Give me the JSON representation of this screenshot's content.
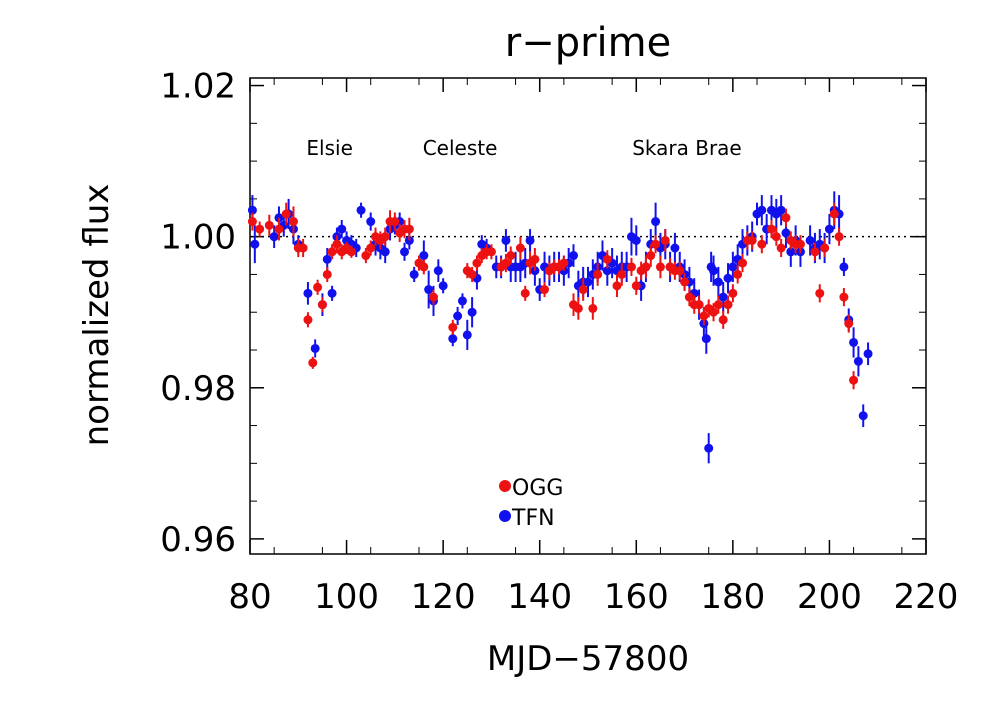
{
  "chart_data": {
    "type": "scatter",
    "title": "r−prime",
    "xlabel": "MJD−57800",
    "ylabel": "normalized flux",
    "xlim": [
      80,
      220
    ],
    "ylim": [
      0.958,
      1.021
    ],
    "xticks": [
      80,
      100,
      120,
      140,
      160,
      180,
      200,
      220
    ],
    "xtick_labels": [
      "80",
      "100",
      "120",
      "140",
      "160",
      "180",
      "200",
      "220"
    ],
    "yticks": [
      0.96,
      0.98,
      1.0,
      1.02
    ],
    "ytick_labels": [
      "0.96",
      "0.98",
      "1.00",
      "1.02"
    ],
    "reference_line": 1.0,
    "grid": false,
    "legend_position": "bottom-center",
    "annotations": [
      {
        "text": "Elsie",
        "x": 96.5,
        "y": 1.0108
      },
      {
        "text": "Celeste",
        "x": 123.5,
        "y": 1.0108
      },
      {
        "text": "Skara Brae",
        "x": 170.5,
        "y": 1.0108
      }
    ],
    "series": [
      {
        "name": "OGG",
        "color": "#ee1111",
        "points": [
          [
            80.5,
            1.002,
            0.0012
          ],
          [
            82,
            1.001,
            0.001
          ],
          [
            84,
            1.0015,
            0.0014
          ],
          [
            86,
            1.001,
            0.0015
          ],
          [
            87.5,
            1.003,
            0.0015
          ],
          [
            89,
            1.002,
            0.002
          ],
          [
            90,
            0.9985,
            0.0012
          ],
          [
            91,
            0.9985,
            0.0012
          ],
          [
            92,
            0.989,
            0.001
          ],
          [
            93,
            0.9833,
            0.0008
          ],
          [
            94,
            0.9933,
            0.001
          ],
          [
            95,
            0.991,
            0.001
          ],
          [
            96,
            0.995,
            0.001
          ],
          [
            97,
            0.998,
            0.001
          ],
          [
            98,
            0.999,
            0.0012
          ],
          [
            99,
            0.998,
            0.001
          ],
          [
            100,
            0.9985,
            0.0008
          ],
          [
            101,
            0.998,
            0.0008
          ],
          [
            104,
            0.9975,
            0.001
          ],
          [
            105,
            0.9985,
            0.001
          ],
          [
            106,
            1.0,
            0.0012
          ],
          [
            107,
            0.9995,
            0.0012
          ],
          [
            108,
            1.0,
            0.0012
          ],
          [
            109,
            1.002,
            0.0015
          ],
          [
            110,
            1.002,
            0.0012
          ],
          [
            111,
            1.0005,
            0.0012
          ],
          [
            112,
            1.001,
            0.0012
          ],
          [
            113,
            1.001,
            0.0015
          ],
          [
            115,
            0.9965,
            0.001
          ],
          [
            116,
            0.996,
            0.001
          ],
          [
            118,
            0.992,
            0.001
          ],
          [
            122,
            0.988,
            0.001
          ],
          [
            125,
            0.9955,
            0.001
          ],
          [
            126,
            0.995,
            0.001
          ],
          [
            127,
            0.9965,
            0.001
          ],
          [
            128,
            0.9975,
            0.001
          ],
          [
            129,
            0.998,
            0.001
          ],
          [
            130,
            0.998,
            0.001
          ],
          [
            132,
            0.996,
            0.0012
          ],
          [
            133,
            0.9965,
            0.0012
          ],
          [
            134,
            0.9975,
            0.0012
          ],
          [
            136,
            0.9985,
            0.0015
          ],
          [
            137,
            0.9925,
            0.001
          ],
          [
            138,
            0.9965,
            0.0015
          ],
          [
            139,
            0.997,
            0.0015
          ],
          [
            141,
            0.993,
            0.001
          ],
          [
            142,
            0.9955,
            0.0012
          ],
          [
            143,
            0.996,
            0.001
          ],
          [
            144,
            0.996,
            0.001
          ],
          [
            145,
            0.9965,
            0.001
          ],
          [
            147,
            0.991,
            0.0015
          ],
          [
            148,
            0.9905,
            0.0015
          ],
          [
            149,
            0.993,
            0.0015
          ],
          [
            151,
            0.9905,
            0.0015
          ],
          [
            152,
            0.995,
            0.0015
          ],
          [
            154,
            0.997,
            0.0012
          ],
          [
            156,
            0.9935,
            0.0015
          ],
          [
            157,
            0.995,
            0.0015
          ],
          [
            159,
            0.996,
            0.0012
          ],
          [
            160,
            0.9935,
            0.0012
          ],
          [
            161,
            0.9955,
            0.0012
          ],
          [
            162,
            0.996,
            0.0015
          ],
          [
            163,
            0.9975,
            0.0015
          ],
          [
            164,
            0.999,
            0.0012
          ],
          [
            165,
            0.996,
            0.0015
          ],
          [
            166,
            0.9995,
            0.0015
          ],
          [
            167,
            0.996,
            0.0012
          ],
          [
            168,
            0.9955,
            0.0012
          ],
          [
            169,
            0.9955,
            0.0012
          ],
          [
            170,
            0.994,
            0.0012
          ],
          [
            171,
            0.992,
            0.0012
          ],
          [
            172,
            0.991,
            0.0012
          ],
          [
            173,
            0.991,
            0.0012
          ],
          [
            174,
            0.9895,
            0.0012
          ],
          [
            175,
            0.9905,
            0.0012
          ],
          [
            176,
            0.99,
            0.0012
          ],
          [
            177,
            0.991,
            0.0012
          ],
          [
            178,
            0.989,
            0.0012
          ],
          [
            179,
            0.991,
            0.0012
          ],
          [
            180,
            0.9925,
            0.0012
          ],
          [
            181,
            0.995,
            0.0012
          ],
          [
            182,
            0.9965,
            0.0012
          ],
          [
            183,
            0.9995,
            0.0012
          ],
          [
            184,
            0.9995,
            0.0012
          ],
          [
            186,
            0.999,
            0.0012
          ],
          [
            188,
            1.001,
            0.0012
          ],
          [
            189,
            1.0,
            0.0012
          ],
          [
            190,
            0.9985,
            0.0012
          ],
          [
            191,
            1.0025,
            0.0012
          ],
          [
            192,
            0.9995,
            0.0012
          ],
          [
            193,
            0.999,
            0.0012
          ],
          [
            194,
            0.999,
            0.0012
          ],
          [
            197,
            0.998,
            0.0012
          ],
          [
            198,
            0.9925,
            0.0012
          ],
          [
            199,
            0.9985,
            0.0012
          ],
          [
            201,
            1.003,
            0.0015
          ],
          [
            202,
            1.0,
            0.0012
          ],
          [
            203,
            0.992,
            0.0012
          ],
          [
            204,
            0.9885,
            0.0012
          ],
          [
            205,
            0.981,
            0.0012
          ]
        ]
      },
      {
        "name": "TFN",
        "color": "#1111ee",
        "points": [
          [
            80.5,
            1.0035,
            0.002
          ],
          [
            81,
            0.999,
            0.0025
          ],
          [
            85,
            1.0,
            0.0015
          ],
          [
            86,
            1.0025,
            0.0015
          ],
          [
            87,
            1.0015,
            0.0015
          ],
          [
            88,
            1.003,
            0.002
          ],
          [
            89,
            1.001,
            0.002
          ],
          [
            90,
            0.999,
            0.0012
          ],
          [
            92,
            0.9925,
            0.0015
          ],
          [
            93.5,
            0.9852,
            0.0012
          ],
          [
            95,
            0.991,
            0.0015
          ],
          [
            96,
            0.997,
            0.0015
          ],
          [
            97,
            0.9925,
            0.001
          ],
          [
            98,
            1.0,
            0.0012
          ],
          [
            99,
            1.001,
            0.0012
          ],
          [
            100,
            0.9995,
            0.0012
          ],
          [
            101,
            0.999,
            0.0012
          ],
          [
            102,
            0.9985,
            0.0012
          ],
          [
            103,
            1.0035,
            0.001
          ],
          [
            105,
            1.002,
            0.0012
          ],
          [
            106,
            0.999,
            0.0015
          ],
          [
            107,
            0.9985,
            0.0015
          ],
          [
            108,
            0.998,
            0.0015
          ],
          [
            109,
            1.001,
            0.0015
          ],
          [
            110,
            1.0015,
            0.0012
          ],
          [
            111,
            1.002,
            0.0012
          ],
          [
            112,
            0.998,
            0.0012
          ],
          [
            113,
            0.9995,
            0.0012
          ],
          [
            114,
            0.995,
            0.001
          ],
          [
            116,
            0.9975,
            0.002
          ],
          [
            117,
            0.993,
            0.0025
          ],
          [
            118,
            0.9915,
            0.002
          ],
          [
            119,
            0.9955,
            0.0015
          ],
          [
            120,
            0.9935,
            0.001
          ],
          [
            122,
            0.9865,
            0.001
          ],
          [
            123,
            0.9895,
            0.0012
          ],
          [
            124,
            0.9915,
            0.001
          ],
          [
            125,
            0.987,
            0.002
          ],
          [
            126,
            0.99,
            0.002
          ],
          [
            127,
            0.9945,
            0.0015
          ],
          [
            128,
            0.999,
            0.0012
          ],
          [
            129,
            0.9985,
            0.0012
          ],
          [
            131,
            0.996,
            0.0015
          ],
          [
            132,
            0.996,
            0.0015
          ],
          [
            133,
            0.9995,
            0.0015
          ],
          [
            134,
            0.996,
            0.002
          ],
          [
            135,
            0.996,
            0.002
          ],
          [
            136,
            0.996,
            0.002
          ],
          [
            137,
            0.9965,
            0.002
          ],
          [
            138,
            0.9995,
            0.0015
          ],
          [
            139,
            0.9955,
            0.002
          ],
          [
            140,
            0.993,
            0.0015
          ],
          [
            141,
            0.996,
            0.002
          ],
          [
            142,
            0.9955,
            0.002
          ],
          [
            143,
            0.996,
            0.002
          ],
          [
            144,
            0.996,
            0.002
          ],
          [
            145,
            0.9955,
            0.002
          ],
          [
            146,
            0.9965,
            0.002
          ],
          [
            147,
            0.9975,
            0.0015
          ],
          [
            148,
            0.9935,
            0.002
          ],
          [
            149,
            0.994,
            0.002
          ],
          [
            150,
            0.994,
            0.002
          ],
          [
            151,
            0.995,
            0.002
          ],
          [
            152,
            0.996,
            0.002
          ],
          [
            153,
            0.9975,
            0.002
          ],
          [
            154,
            0.9955,
            0.002
          ],
          [
            155,
            0.9965,
            0.002
          ],
          [
            156,
            0.9955,
            0.002
          ],
          [
            157,
            0.996,
            0.002
          ],
          [
            158,
            0.996,
            0.002
          ],
          [
            159,
            1.0,
            0.0025
          ],
          [
            160,
            0.9995,
            0.002
          ],
          [
            161,
            0.9935,
            0.002
          ],
          [
            162,
            0.996,
            0.002
          ],
          [
            163,
            0.999,
            0.002
          ],
          [
            164,
            1.002,
            0.0025
          ],
          [
            165,
            0.9985,
            0.002
          ],
          [
            166,
            0.999,
            0.002
          ],
          [
            167,
            0.996,
            0.002
          ],
          [
            168,
            0.9985,
            0.002
          ],
          [
            169,
            0.996,
            0.002
          ],
          [
            170,
            0.995,
            0.002
          ],
          [
            171,
            0.994,
            0.002
          ],
          [
            172,
            0.9925,
            0.002
          ],
          [
            173,
            0.991,
            0.002
          ],
          [
            174,
            0.9885,
            0.002
          ],
          [
            174.5,
            0.9865,
            0.002
          ],
          [
            175,
            0.972,
            0.002
          ],
          [
            175.5,
            0.996,
            0.002
          ],
          [
            176,
            0.9955,
            0.002
          ],
          [
            177,
            0.994,
            0.002
          ],
          [
            178,
            0.992,
            0.002
          ],
          [
            179,
            0.9945,
            0.002
          ],
          [
            180,
            0.996,
            0.002
          ],
          [
            181,
            0.997,
            0.002
          ],
          [
            182,
            0.999,
            0.002
          ],
          [
            183,
            0.9995,
            0.002
          ],
          [
            184,
            1.0,
            0.002
          ],
          [
            185,
            1.003,
            0.0015
          ],
          [
            186,
            1.0035,
            0.002
          ],
          [
            187,
            1.001,
            0.002
          ],
          [
            188,
            1.0035,
            0.002
          ],
          [
            189,
            1.003,
            0.002
          ],
          [
            190,
            1.0035,
            0.002
          ],
          [
            191,
            1.0005,
            0.002
          ],
          [
            192,
            0.998,
            0.002
          ],
          [
            193,
            0.9995,
            0.002
          ],
          [
            194,
            0.998,
            0.002
          ],
          [
            196,
            0.9995,
            0.002
          ],
          [
            197,
            0.9985,
            0.002
          ],
          [
            198,
            0.999,
            0.002
          ],
          [
            199,
            0.9985,
            0.002
          ],
          [
            200,
            1.001,
            0.002
          ],
          [
            201,
            1.0035,
            0.0025
          ],
          [
            202,
            1.003,
            0.0025
          ],
          [
            203,
            0.996,
            0.0012
          ],
          [
            204,
            0.989,
            0.0015
          ],
          [
            205,
            0.986,
            0.002
          ],
          [
            206,
            0.9835,
            0.002
          ],
          [
            207,
            0.9763,
            0.0015
          ],
          [
            208,
            0.9845,
            0.0015
          ]
        ]
      }
    ]
  }
}
